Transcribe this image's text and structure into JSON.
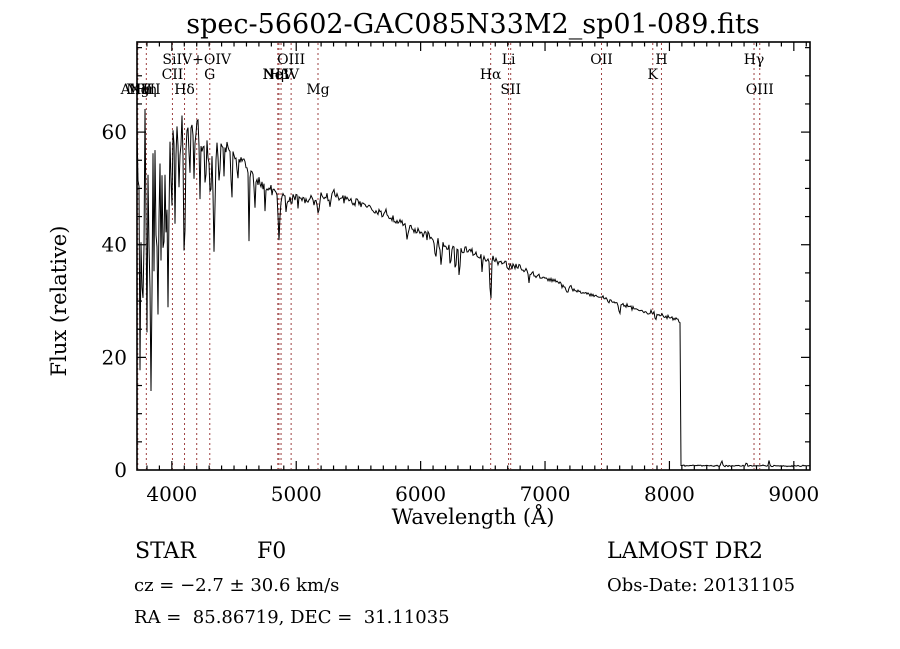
{
  "title": "spec-56602-GAC085N33M2_sp01-089.fits",
  "chart_data": {
    "type": "line",
    "title": "spec-56602-GAC085N33M2_sp01-089.fits",
    "xlabel": "Wavelength (Å)",
    "ylabel": "Flux (relative)",
    "xlim": [
      3720,
      9130
    ],
    "ylim": [
      0,
      76
    ],
    "x_ticks": [
      4000,
      5000,
      6000,
      7000,
      8000,
      9000
    ],
    "y_ticks": [
      0,
      20,
      40,
      60
    ],
    "x_minor_step": 100,
    "y_minor_step": 5,
    "grid": false,
    "line_color": "#000000",
    "marker_line_color": "#9e4141",
    "spectral_lines": [
      {
        "label": "AlIII",
        "wavelength": 3714,
        "row": 3,
        "marker": true
      },
      {
        "label": "NV",
        "wavelength": 3745,
        "row": 3,
        "marker": false
      },
      {
        "label": "MgII",
        "wavelength": 3772,
        "row": 3,
        "marker": false
      },
      {
        "label": "Hη",
        "wavelength": 3795,
        "row": 3,
        "marker": true
      },
      {
        "label": "CII",
        "wavelength": 4005,
        "row": 2,
        "marker": true
      },
      {
        "label": "Hδ",
        "wavelength": 4102,
        "row": 3,
        "marker": true
      },
      {
        "label": "SiIV+OIV",
        "wavelength": 4200,
        "row": 1,
        "marker": true
      },
      {
        "label": "G",
        "wavelength": 4305,
        "row": 2,
        "marker": true
      },
      {
        "label": "NeV",
        "wavelength": 4852,
        "row": 2,
        "marker": true
      },
      {
        "label": "Hβ",
        "wavelength": 4861,
        "row": 2,
        "marker": true
      },
      {
        "label": "NeIV",
        "wavelength": 4878,
        "row": 2,
        "marker": true
      },
      {
        "label": "OIII",
        "wavelength": 4959,
        "row": 1,
        "marker": true
      },
      {
        "label": "Mg",
        "wavelength": 5175,
        "row": 3,
        "marker": true
      },
      {
        "label": "Hα",
        "wavelength": 6563,
        "row": 2,
        "marker": true
      },
      {
        "label": "Li",
        "wavelength": 6707,
        "row": 1,
        "marker": true
      },
      {
        "label": "SII",
        "wavelength": 6724,
        "row": 3,
        "marker": true
      },
      {
        "label": "OII",
        "wavelength": 7454,
        "row": 1,
        "marker": true
      },
      {
        "label": "K",
        "wavelength": 7866,
        "row": 2,
        "marker": true
      },
      {
        "label": "H",
        "wavelength": 7936,
        "row": 1,
        "marker": true
      },
      {
        "label": "Hγ",
        "wavelength": 8680,
        "row": 1,
        "marker": true
      },
      {
        "label": "OIII",
        "wavelength": 8726,
        "row": 3,
        "marker": true
      }
    ],
    "continuum": [
      [
        3720,
        56
      ],
      [
        3760,
        58
      ],
      [
        3800,
        60
      ],
      [
        3840,
        59
      ],
      [
        3880,
        59
      ],
      [
        3920,
        58
      ],
      [
        3960,
        59
      ],
      [
        4000,
        60
      ],
      [
        4050,
        60
      ],
      [
        4100,
        60
      ],
      [
        4160,
        61
      ],
      [
        4220,
        59
      ],
      [
        4280,
        57
      ],
      [
        4340,
        56
      ],
      [
        4400,
        57.5
      ],
      [
        4460,
        57
      ],
      [
        4520,
        56
      ],
      [
        4580,
        55
      ],
      [
        4640,
        53
      ],
      [
        4700,
        51.5
      ],
      [
        4760,
        50.5
      ],
      [
        4820,
        49.5
      ],
      [
        4880,
        48.5
      ],
      [
        4940,
        48
      ],
      [
        5000,
        48.5
      ],
      [
        5060,
        48.5
      ],
      [
        5120,
        48
      ],
      [
        5180,
        48
      ],
      [
        5240,
        49
      ],
      [
        5300,
        49
      ],
      [
        5360,
        48.5
      ],
      [
        5420,
        48
      ],
      [
        5500,
        47.5
      ],
      [
        5600,
        46.5
      ],
      [
        5700,
        45.5
      ],
      [
        5800,
        44.2
      ],
      [
        5900,
        43.2
      ],
      [
        6000,
        42.2
      ],
      [
        6100,
        41
      ],
      [
        6200,
        39.8
      ],
      [
        6300,
        38.8
      ],
      [
        6400,
        38.8
      ],
      [
        6450,
        38.2
      ],
      [
        6520,
        37.6
      ],
      [
        6600,
        37.3
      ],
      [
        6700,
        36.6
      ],
      [
        6800,
        35.8
      ],
      [
        6900,
        34.8
      ],
      [
        7000,
        34
      ],
      [
        7100,
        33.2
      ],
      [
        7200,
        32.3
      ],
      [
        7300,
        31.6
      ],
      [
        7400,
        31
      ],
      [
        7500,
        30.2
      ],
      [
        7600,
        29.4
      ],
      [
        7700,
        28.8
      ],
      [
        7800,
        28
      ],
      [
        7900,
        27.7
      ],
      [
        8000,
        27.2
      ],
      [
        8060,
        26.8
      ],
      [
        8085,
        26.4
      ],
      [
        8089,
        0.78
      ],
      [
        8400,
        0.75
      ],
      [
        8700,
        0.72
      ],
      [
        9130,
        0.75
      ]
    ],
    "absorption_dips": [
      [
        3745,
        42,
        4
      ],
      [
        3760,
        26,
        4
      ],
      [
        3771,
        40,
        5
      ],
      [
        3798,
        38,
        5
      ],
      [
        3820,
        24,
        4
      ],
      [
        3835,
        44,
        6
      ],
      [
        3856,
        22,
        4
      ],
      [
        3874,
        20,
        4
      ],
      [
        3889,
        36,
        6
      ],
      [
        3912,
        18,
        4
      ],
      [
        3933,
        30,
        5
      ],
      [
        3952,
        18,
        4
      ],
      [
        3970,
        32,
        6
      ],
      [
        4000,
        16,
        4
      ],
      [
        4026,
        15,
        4
      ],
      [
        4060,
        13,
        4
      ],
      [
        4102,
        25,
        6
      ],
      [
        4144,
        11,
        4
      ],
      [
        4180,
        9,
        4
      ],
      [
        4227,
        9,
        4
      ],
      [
        4270,
        8,
        4
      ],
      [
        4310,
        9,
        5
      ],
      [
        4340,
        19,
        6
      ],
      [
        4383,
        8,
        4
      ],
      [
        4420,
        6,
        4
      ],
      [
        4481,
        10,
        4
      ],
      [
        4530,
        6,
        4
      ],
      [
        4620,
        13,
        4
      ],
      [
        4668,
        6,
        4
      ],
      [
        4750,
        4,
        4
      ],
      [
        4861,
        8.5,
        6
      ],
      [
        4920,
        3,
        4
      ],
      [
        5015,
        2.5,
        4
      ],
      [
        5175,
        2.5,
        7
      ],
      [
        5270,
        2,
        6
      ],
      [
        5890,
        2.5,
        5
      ],
      [
        6122,
        3,
        6
      ],
      [
        6165,
        3.5,
        6
      ],
      [
        6240,
        3,
        5
      ],
      [
        6280,
        4.5,
        5
      ],
      [
        6312,
        6.5,
        3.5
      ],
      [
        6495,
        2.5,
        4
      ],
      [
        6563,
        8,
        5
      ],
      [
        6707,
        1.8,
        3
      ],
      [
        6870,
        1.5,
        4
      ],
      [
        7180,
        1.5,
        7
      ],
      [
        7600,
        2,
        5
      ],
      [
        7890,
        1.2,
        4
      ],
      [
        8420,
        -0.8,
        6
      ],
      [
        8620,
        -0.6,
        5
      ],
      [
        8800,
        -0.9,
        4
      ]
    ],
    "noise_profile": [
      [
        3720,
        13
      ],
      [
        3770,
        11
      ],
      [
        3820,
        9
      ],
      [
        3870,
        8
      ],
      [
        3920,
        7
      ],
      [
        3970,
        6
      ],
      [
        4050,
        5
      ],
      [
        4150,
        4
      ],
      [
        4250,
        3.2
      ],
      [
        4350,
        2.8
      ],
      [
        4500,
        2.2
      ],
      [
        4700,
        1.8
      ],
      [
        4900,
        1.5
      ],
      [
        5100,
        1.3
      ],
      [
        5400,
        1.2
      ],
      [
        5800,
        1.3
      ],
      [
        6100,
        1.5
      ],
      [
        6350,
        1.3
      ],
      [
        6600,
        1.0
      ],
      [
        6900,
        0.8
      ],
      [
        7300,
        0.7
      ],
      [
        7700,
        0.7
      ],
      [
        8000,
        0.65
      ],
      [
        8084,
        0.6
      ],
      [
        8090,
        0.22
      ],
      [
        9130,
        0.22
      ]
    ]
  },
  "footer": {
    "classification": "STAR",
    "subclass": "F0",
    "cz": "cz = −2.7 ± 30.6 km/s",
    "ra_dec": "RA =  85.86719, DEC =  31.11035",
    "survey": "LAMOST DR2",
    "obs_date": "Obs-Date: 20131105"
  }
}
